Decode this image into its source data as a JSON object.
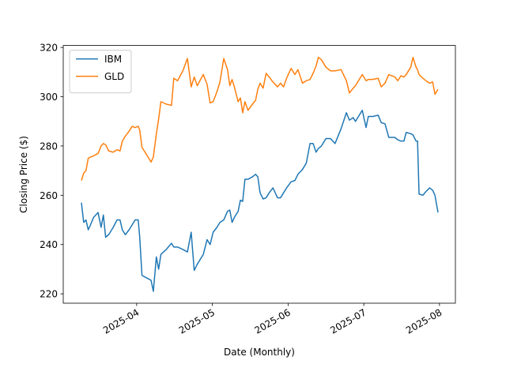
{
  "chart_data": {
    "type": "line",
    "x_label": "Date (Monthly)",
    "y_label": "Closing Price ($)",
    "x": [
      3.27,
      3.3,
      3.33,
      3.36,
      3.39,
      3.43,
      3.49,
      3.53,
      3.56,
      3.59,
      3.63,
      3.69,
      3.74,
      3.78,
      3.81,
      3.85,
      3.9,
      3.94,
      3.98,
      4.02,
      4.04,
      4.07,
      4.16,
      4.19,
      4.22,
      4.26,
      4.29,
      4.32,
      4.39,
      4.46,
      4.49,
      4.54,
      4.61,
      4.67,
      4.72,
      4.76,
      4.8,
      4.88,
      4.93,
      4.97,
      5.01,
      5.06,
      5.1,
      5.15,
      5.2,
      5.23,
      5.26,
      5.29,
      5.34,
      5.37,
      5.4,
      5.43,
      5.47,
      5.53,
      5.57,
      5.6,
      5.63,
      5.67,
      5.71,
      5.75,
      5.8,
      5.86,
      5.9,
      5.94,
      5.98,
      6.04,
      6.09,
      6.13,
      6.19,
      6.24,
      6.29,
      6.33,
      6.37,
      6.4,
      6.44,
      6.5,
      6.56,
      6.62,
      6.7,
      6.77,
      6.81,
      6.86,
      6.89,
      6.98,
      7.03,
      7.06,
      7.12,
      7.19,
      7.23,
      7.28,
      7.33,
      7.41,
      7.45,
      7.49,
      7.53,
      7.56,
      7.62,
      7.65,
      7.69,
      7.71,
      7.73,
      7.78,
      7.82,
      7.87,
      7.91,
      7.94,
      7.98
    ],
    "series": [
      {
        "name": "IBM",
        "color": "#1f77b4",
        "values": [
          257,
          249,
          250,
          246,
          248,
          251,
          253,
          247,
          252,
          243,
          244,
          247,
          250,
          250,
          246,
          244,
          246,
          248,
          250,
          250,
          243,
          227.5,
          226,
          225.5,
          221,
          235,
          230,
          236,
          238,
          240.5,
          239,
          239,
          238,
          237,
          245,
          229.5,
          232,
          236,
          242,
          240,
          245,
          247,
          249,
          250,
          253.5,
          254,
          249,
          251,
          253.5,
          258,
          257.5,
          266.5,
          266.5,
          267.5,
          268.5,
          267.5,
          261,
          258.5,
          259,
          261,
          263,
          259,
          259,
          261,
          263,
          265.5,
          266,
          268.5,
          270.5,
          273,
          281,
          281,
          277.5,
          279,
          280,
          283,
          283,
          281,
          287,
          293.5,
          290.5,
          291.5,
          290,
          294.5,
          287.5,
          292,
          292,
          292.5,
          289.5,
          289,
          283.5,
          283.5,
          282.5,
          282,
          282,
          285.5,
          285,
          284.5,
          282,
          282,
          260.5,
          260,
          261.5,
          263,
          262,
          260,
          253
        ]
      },
      {
        "name": "GLD",
        "color": "#ff7f0e",
        "values": [
          266,
          269,
          270,
          275,
          275.5,
          276,
          277,
          280,
          281,
          280.5,
          278,
          277.5,
          278.5,
          278,
          282,
          284,
          286,
          288,
          287.5,
          288,
          286.5,
          279.5,
          275,
          273.5,
          275.5,
          285,
          291,
          298,
          297,
          296.5,
          307.5,
          306.5,
          310.5,
          315.5,
          304,
          308,
          304.5,
          309,
          305,
          297.5,
          298,
          302,
          306,
          315.5,
          311,
          304.5,
          307,
          304,
          298,
          299.5,
          293.5,
          298,
          294.5,
          297,
          298.5,
          303,
          305.5,
          303.5,
          309.5,
          308,
          306,
          304,
          305.5,
          304,
          307.5,
          311.5,
          309,
          311,
          305.5,
          306.5,
          307,
          309.5,
          312.5,
          316,
          315,
          312,
          310.5,
          310.5,
          311,
          306.5,
          301.5,
          303.5,
          304.5,
          309,
          306.5,
          307,
          307,
          307.5,
          304,
          305.5,
          309,
          308,
          306.5,
          308.5,
          308,
          309,
          312,
          316,
          312,
          311,
          309,
          307.5,
          306.5,
          305.5,
          306,
          301,
          303
        ]
      }
    ],
    "xlim": [
      3.03,
      8.21
    ],
    "xticks": [
      {
        "value": 4,
        "label": "2025-04"
      },
      {
        "value": 5,
        "label": "2025-05"
      },
      {
        "value": 6,
        "label": "2025-06"
      },
      {
        "value": 7,
        "label": "2025-07"
      },
      {
        "value": 8,
        "label": "2025-08"
      }
    ],
    "ylim": [
      216.2,
      320.8
    ],
    "yticks": [
      220,
      240,
      260,
      280,
      300,
      320
    ],
    "grid": false,
    "legend": "upper left"
  }
}
